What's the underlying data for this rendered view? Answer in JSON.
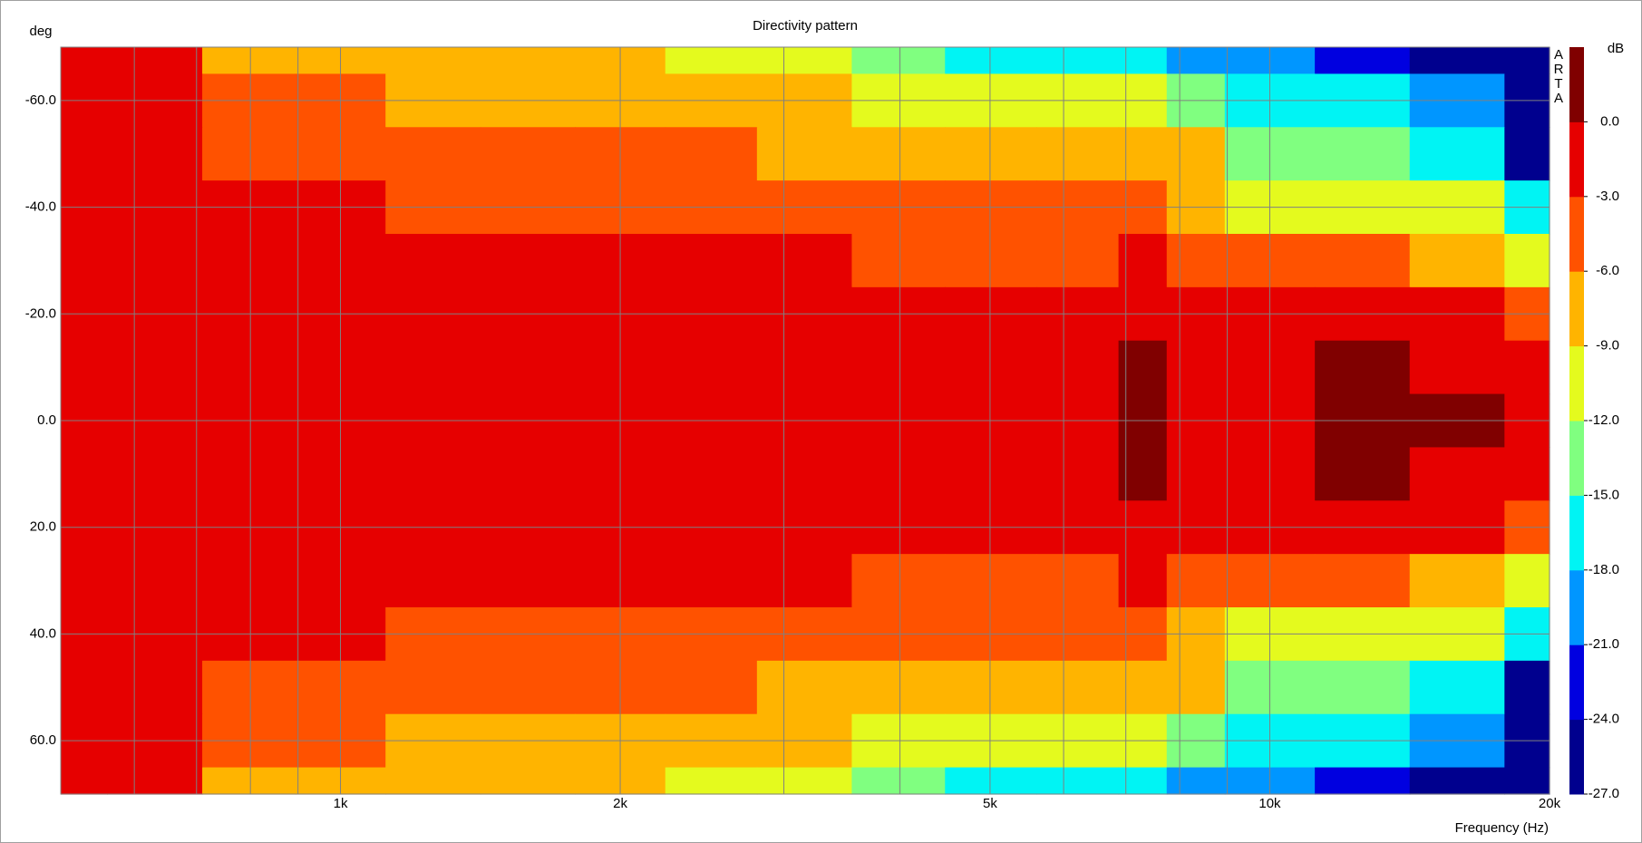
{
  "chart_data": {
    "type": "heatmap",
    "title": "Directivity pattern",
    "xlabel": "Frequency (Hz)",
    "ylabel": "deg",
    "zlabel": "dB",
    "logo": [
      "A",
      "R",
      "T",
      "A"
    ],
    "xscale": "log",
    "xlim": [
      500,
      20000
    ],
    "xticks": [
      {
        "value": 1000,
        "label": "1k"
      },
      {
        "value": 2000,
        "label": "2k"
      },
      {
        "value": 5000,
        "label": "5k"
      },
      {
        "value": 10000,
        "label": "10k"
      },
      {
        "value": 20000,
        "label": "20k"
      }
    ],
    "xminor": [
      600,
      700,
      800,
      900,
      3000,
      4000,
      6000,
      7000,
      8000,
      9000
    ],
    "ylim": [
      -70,
      70
    ],
    "y_inverted": true,
    "yticks": [
      {
        "value": -60,
        "label": "-60.0"
      },
      {
        "value": -40,
        "label": "-40.0"
      },
      {
        "value": -20,
        "label": "-20.0"
      },
      {
        "value": 0,
        "label": "0.0"
      },
      {
        "value": 20,
        "label": "20.0"
      },
      {
        "value": 40,
        "label": "40.0"
      },
      {
        "value": 60,
        "label": "60.0"
      }
    ],
    "grid": true,
    "zlim": [
      -27,
      3
    ],
    "levels": [
      -27,
      -24,
      -21,
      -18,
      -15,
      -12,
      -9,
      -6,
      -3,
      0,
      3
    ],
    "colors": [
      "#00008e",
      "#0000e0",
      "#0096ff",
      "#00f4f4",
      "#80ff80",
      "#e4fa1e",
      "#ffb400",
      "#ff5200",
      "#e60000",
      "#800000"
    ],
    "zticks": [
      {
        "value": 0,
        "label": "0.0"
      },
      {
        "value": -3,
        "label": "-3.0"
      },
      {
        "value": -6,
        "label": "-6.0"
      },
      {
        "value": -9,
        "label": "-9.0"
      },
      {
        "value": -12,
        "label": "-12.0"
      },
      {
        "value": -15,
        "label": "-15.0"
      },
      {
        "value": -18,
        "label": "-18.0"
      },
      {
        "value": -21,
        "label": "-21.0"
      },
      {
        "value": -24,
        "label": "-24.0"
      },
      {
        "value": -27,
        "label": "-27.0"
      }
    ],
    "x": [
      500,
      630,
      800,
      1000,
      1250,
      1600,
      2000,
      2500,
      3150,
      4000,
      5000,
      6300,
      7500,
      8000,
      10000,
      12500,
      16000,
      20000
    ],
    "y": [
      -70,
      -60,
      -50,
      -40,
      -30,
      -20,
      -10,
      0,
      10,
      20,
      30,
      40,
      50,
      60,
      70
    ],
    "z": [
      [
        -2.3,
        -2.8,
        -6.2,
        -7.2,
        -8.2,
        -7.9,
        -8.9,
        -9.6,
        -11.2,
        -12.8,
        -15.6,
        -15.8,
        -16.2,
        -18.1,
        -18.6,
        -21.1,
        -24.8,
        -27.8
      ],
      [
        -2,
        -2.4,
        -4.9,
        -5.5,
        -6.8,
        -6.4,
        -6.6,
        -7.6,
        -8.2,
        -9.1,
        -9.6,
        -10.5,
        -10.5,
        -12.7,
        -15.9,
        -17.3,
        -20,
        -26
      ],
      [
        -1.6,
        -1.9,
        -3.6,
        -3.8,
        -5,
        -5,
        -5.1,
        -5.6,
        -6.2,
        -7,
        -7.6,
        -7.7,
        -7.1,
        -8.5,
        -12.1,
        -13.7,
        -15.8,
        -24.1
      ],
      [
        -1.3,
        -1.5,
        -2.7,
        -2.7,
        -3.1,
        -3.7,
        -3.4,
        -4.1,
        -4.5,
        -5.2,
        -5.6,
        -5.2,
        -4.6,
        -6.1,
        -9.5,
        -9.8,
        -10.5,
        -17.3
      ],
      [
        -1,
        -1.1,
        -2.2,
        -2.2,
        -2.4,
        -2.6,
        -2.5,
        -2.6,
        -2.9,
        -3.5,
        -3.3,
        -3.1,
        -2.5,
        -4.5,
        -5.3,
        -4.8,
        -6.9,
        -11
      ],
      [
        -0.8,
        -0.8,
        -1.6,
        -1.6,
        -1.8,
        -1.9,
        -1.8,
        -1.9,
        -2.1,
        -2.3,
        -2.3,
        -2.1,
        -1.3,
        -2.8,
        -2.7,
        -1.8,
        -2.7,
        -5
      ],
      [
        -0.6,
        -0.6,
        -1.1,
        -1.1,
        -1.1,
        -1.2,
        -1.1,
        -1.2,
        -1.3,
        -1.4,
        -1.4,
        -1.2,
        0.1,
        -1.7,
        -1.6,
        0.3,
        -0.5,
        -1.8
      ],
      [
        -0.5,
        -0.5,
        -0.5,
        -0.5,
        -0.5,
        -0.5,
        -0.5,
        -0.5,
        -0.5,
        -0.5,
        -0.5,
        -0.3,
        0.6,
        -0.5,
        -0.6,
        0.8,
        0.3,
        -0.8
      ],
      [
        -0.6,
        -0.6,
        -1.1,
        -1.1,
        -1.1,
        -1.2,
        -1.1,
        -1.2,
        -1.3,
        -1.4,
        -1.4,
        -1.2,
        0.1,
        -1.7,
        -1.6,
        0.3,
        -0.5,
        -1.8
      ],
      [
        -0.8,
        -0.8,
        -1.6,
        -1.6,
        -1.8,
        -1.9,
        -1.8,
        -1.9,
        -2.1,
        -2.3,
        -2.3,
        -2.1,
        -1.3,
        -2.8,
        -2.7,
        -1.8,
        -2.7,
        -5
      ],
      [
        -1,
        -1.1,
        -2.2,
        -2.2,
        -2.4,
        -2.6,
        -2.5,
        -2.6,
        -2.9,
        -3.5,
        -3.3,
        -3.1,
        -2.5,
        -4.5,
        -5.3,
        -4.8,
        -6.9,
        -11
      ],
      [
        -1.3,
        -1.5,
        -2.7,
        -2.7,
        -3.1,
        -3.7,
        -3.4,
        -4.1,
        -4.5,
        -5.2,
        -5.6,
        -5.2,
        -4.6,
        -6.1,
        -9.5,
        -9.8,
        -10.5,
        -17.3
      ],
      [
        -1.6,
        -1.9,
        -3.6,
        -3.8,
        -5,
        -5,
        -5.1,
        -5.6,
        -6.2,
        -7,
        -7.6,
        -7.7,
        -7.1,
        -8.5,
        -12.1,
        -13.7,
        -15.8,
        -24.1
      ],
      [
        -2,
        -2.4,
        -4.9,
        -5.5,
        -6.8,
        -6.4,
        -6.6,
        -7.6,
        -8.2,
        -9.1,
        -9.6,
        -10.5,
        -10.5,
        -12.7,
        -15.9,
        -17.3,
        -20,
        -26
      ],
      [
        -2.3,
        -2.8,
        -6.2,
        -7.2,
        -8.2,
        -7.9,
        -8.9,
        -9.6,
        -11.2,
        -12.8,
        -15.6,
        -15.8,
        -16.2,
        -18.1,
        -18.6,
        -21.1,
        -24.8,
        -27.8
      ]
    ]
  }
}
